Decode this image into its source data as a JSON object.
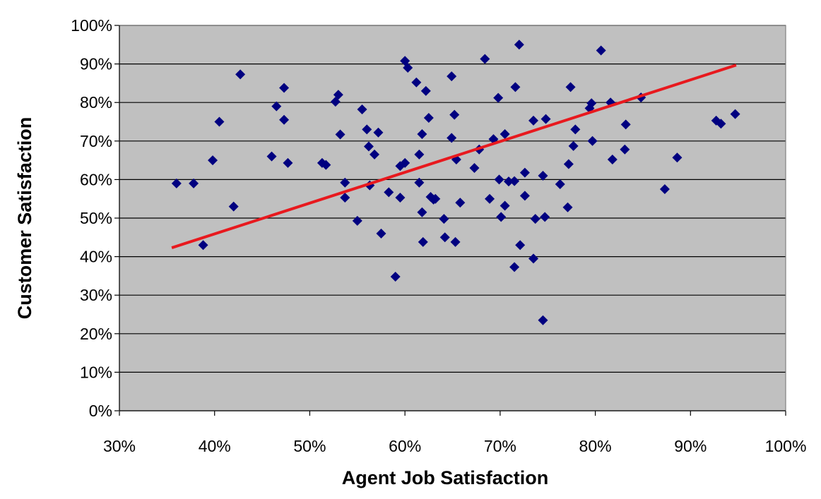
{
  "chart_data": {
    "type": "scatter",
    "title": "",
    "xlabel": "Agent Job Satisfaction",
    "ylabel": "Customer Satisfaction",
    "xlim": [
      30,
      100
    ],
    "ylim": [
      0,
      100
    ],
    "x_ticks": [
      "30%",
      "40%",
      "50%",
      "60%",
      "70%",
      "80%",
      "90%",
      "100%"
    ],
    "y_ticks": [
      "0%",
      "10%",
      "20%",
      "30%",
      "40%",
      "50%",
      "60%",
      "70%",
      "80%",
      "90%",
      "100%"
    ],
    "grid": "horizontal",
    "background_color": "#c0c0c0",
    "marker_color": "#000080",
    "trendline_color": "#e8191e",
    "trendline": {
      "x": [
        35.5,
        94.8
      ],
      "y": [
        42.3,
        89.7
      ]
    },
    "points": [
      [
        36,
        59
      ],
      [
        37.8,
        59
      ],
      [
        38.8,
        43
      ],
      [
        39.8,
        65
      ],
      [
        40.5,
        75
      ],
      [
        42,
        53
      ],
      [
        42.7,
        87.3
      ],
      [
        46,
        66
      ],
      [
        46.5,
        79
      ],
      [
        47.3,
        83.8
      ],
      [
        47.3,
        75.5
      ],
      [
        47.7,
        64.3
      ],
      [
        51.3,
        64.3
      ],
      [
        51.7,
        63.8
      ],
      [
        52.7,
        80.2
      ],
      [
        53,
        82
      ],
      [
        53.2,
        71.7
      ],
      [
        53.7,
        59.2
      ],
      [
        53.7,
        55.3
      ],
      [
        55,
        49.3
      ],
      [
        55.5,
        78.2
      ],
      [
        56,
        73
      ],
      [
        56.2,
        68.6
      ],
      [
        56.3,
        58.5
      ],
      [
        56.8,
        66.5
      ],
      [
        57.2,
        72.2
      ],
      [
        57.5,
        46
      ],
      [
        58.3,
        56.7
      ],
      [
        59,
        34.8
      ],
      [
        59.5,
        55.3
      ],
      [
        59.5,
        63.5
      ],
      [
        60,
        64.3
      ],
      [
        60,
        90.8
      ],
      [
        60.3,
        89
      ],
      [
        61.2,
        85.2
      ],
      [
        61.5,
        66.5
      ],
      [
        61.5,
        59.2
      ],
      [
        61.8,
        51.5
      ],
      [
        61.8,
        71.8
      ],
      [
        61.9,
        43.8
      ],
      [
        62.2,
        83
      ],
      [
        62.5,
        76
      ],
      [
        62.7,
        55.5
      ],
      [
        63,
        54.8
      ],
      [
        63.2,
        55
      ],
      [
        64.1,
        49.8
      ],
      [
        64.2,
        45
      ],
      [
        64.9,
        86.8
      ],
      [
        64.9,
        70.8
      ],
      [
        65.2,
        76.8
      ],
      [
        65.3,
        43.8
      ],
      [
        65.4,
        65.2
      ],
      [
        65.8,
        54
      ],
      [
        67.3,
        63
      ],
      [
        67.8,
        67.8
      ],
      [
        68.4,
        91.3
      ],
      [
        68.9,
        55
      ],
      [
        69.3,
        70.5
      ],
      [
        69.8,
        81.2
      ],
      [
        69.9,
        60
      ],
      [
        70.1,
        50.3
      ],
      [
        70.5,
        71.8
      ],
      [
        70.5,
        53.2
      ],
      [
        70.9,
        59.5
      ],
      [
        71.5,
        59.6
      ],
      [
        71.5,
        37.3
      ],
      [
        71.6,
        84
      ],
      [
        72,
        95
      ],
      [
        72.1,
        43
      ],
      [
        72.6,
        61.8
      ],
      [
        72.6,
        55.8
      ],
      [
        73.5,
        39.5
      ],
      [
        73.5,
        75.3
      ],
      [
        73.7,
        49.8
      ],
      [
        74.5,
        61
      ],
      [
        74.5,
        23.5
      ],
      [
        74.7,
        50.3
      ],
      [
        74.8,
        75.7
      ],
      [
        76.3,
        58.8
      ],
      [
        77.1,
        52.8
      ],
      [
        77.2,
        64
      ],
      [
        77.4,
        84
      ],
      [
        77.7,
        68.7
      ],
      [
        77.9,
        73
      ],
      [
        79.4,
        78.5
      ],
      [
        79.6,
        79.8
      ],
      [
        79.7,
        70
      ],
      [
        80.6,
        93.5
      ],
      [
        81.6,
        80
      ],
      [
        81.8,
        65.2
      ],
      [
        83.1,
        67.8
      ],
      [
        83.2,
        74.3
      ],
      [
        84.8,
        81.3
      ],
      [
        87.3,
        57.5
      ],
      [
        88.6,
        65.7
      ],
      [
        92.7,
        75.3
      ],
      [
        93.2,
        74.5
      ],
      [
        94.7,
        77
      ]
    ]
  }
}
